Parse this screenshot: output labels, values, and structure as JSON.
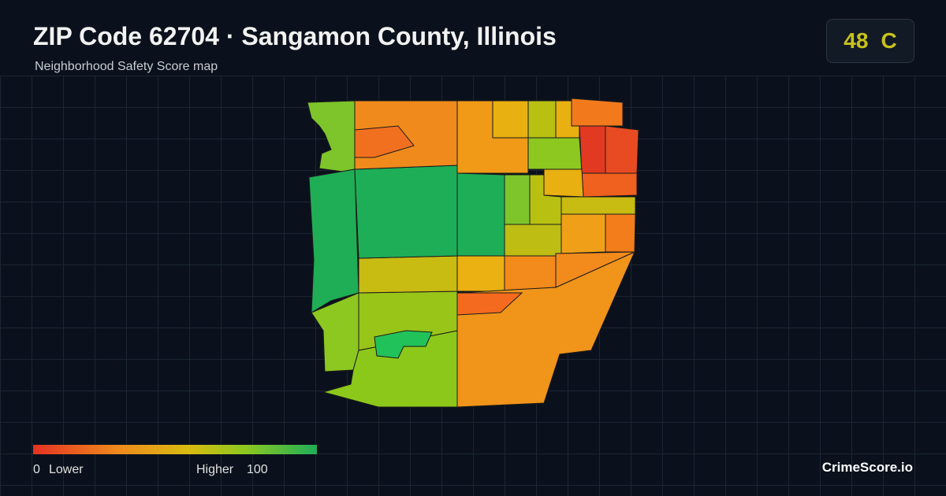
{
  "header": {
    "title": "ZIP Code 62704 · Sangamon County, Illinois",
    "subtitle": "Neighborhood Safety Score map"
  },
  "score": {
    "value": "48",
    "grade": "C"
  },
  "legend": {
    "min": "0",
    "min_label": "Lower",
    "max_label": "Higher",
    "max": "100"
  },
  "brand": "CrimeScore.io"
}
